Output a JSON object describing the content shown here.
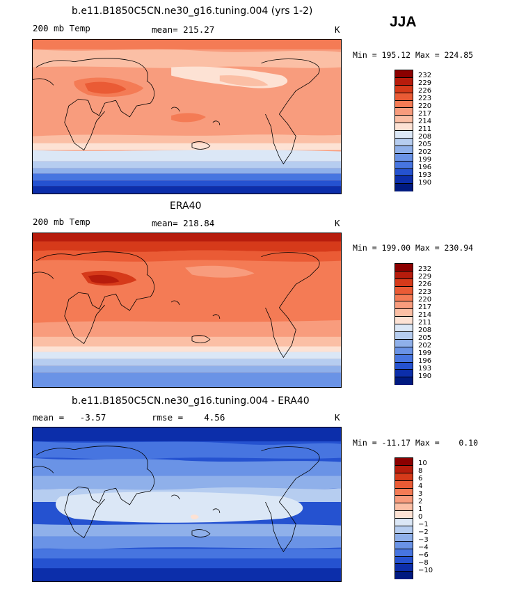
{
  "season": "JJA",
  "units": "K",
  "panels": [
    {
      "title": "b.e11.B1850C5CN.ne30_g16.tuning.004 (yrs 1-2)",
      "left_label": "200 mb Temp",
      "center_label": "mean= 215.27",
      "stats": "Min = 195.12 Max = 224.85",
      "colorbar_labels": [
        "232",
        "229",
        "226",
        "223",
        "220",
        "217",
        "214",
        "211",
        "208",
        "205",
        "202",
        "199",
        "196",
        "193",
        "190"
      ]
    },
    {
      "title": "ERA40",
      "left_label": "200 mb Temp",
      "center_label": "mean= 218.84",
      "stats": "Min = 199.00 Max = 230.94",
      "colorbar_labels": [
        "232",
        "229",
        "226",
        "223",
        "220",
        "217",
        "214",
        "211",
        "208",
        "205",
        "202",
        "199",
        "196",
        "193",
        "190"
      ]
    },
    {
      "title": "b.e11.B1850C5CN.ne30_g16.tuning.004 - ERA40",
      "left_label": "mean =   -3.57",
      "center_label": "rmse =    4.56",
      "stats": "Min = -11.17 Max =    0.10",
      "colorbar_labels": [
        "10",
        "8",
        "6",
        "4",
        "3",
        "2",
        "1",
        "0",
        "−1",
        "−2",
        "−3",
        "−4",
        "−6",
        "−8",
        "−10"
      ]
    }
  ],
  "palette": [
    "#8b0000",
    "#b71c0c",
    "#d63a1a",
    "#ea5b35",
    "#f47b55",
    "#f89c7d",
    "#fbbfa5",
    "#fde2d4",
    "#dbe7f6",
    "#b6cdf0",
    "#8fb0ea",
    "#6a93e6",
    "#4775e0",
    "#2552d0",
    "#0c2eaa",
    "#001a80"
  ]
}
